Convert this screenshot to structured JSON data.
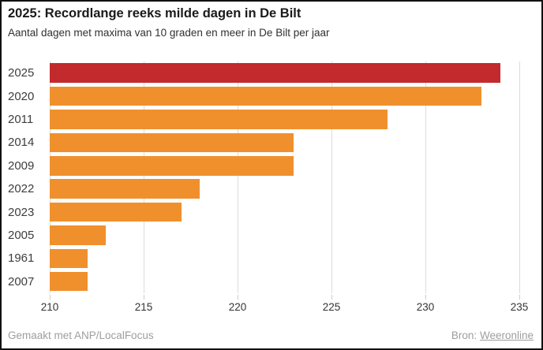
{
  "header": {
    "title": "2025: Recordlange reeks milde dagen in De Bilt",
    "subtitle": "Aantal dagen met maxima van 10 graden en meer in De Bilt per jaar"
  },
  "chart_data": {
    "type": "bar",
    "orientation": "horizontal",
    "title": "2025: Recordlange reeks milde dagen in De Bilt",
    "subtitle": "Aantal dagen met maxima van 10 graden en meer in De Bilt per jaar",
    "categories": [
      "2025",
      "2020",
      "2011",
      "2014",
      "2009",
      "2022",
      "2023",
      "2005",
      "1961",
      "2007"
    ],
    "values": [
      234,
      233,
      228,
      223,
      223,
      218,
      217,
      213,
      212,
      212
    ],
    "colors": [
      "#c32a2d",
      "#f0902d",
      "#f0902d",
      "#f0902d",
      "#f0902d",
      "#f0902d",
      "#f0902d",
      "#f0902d",
      "#f0902d",
      "#f0902d"
    ],
    "highlight_color": "#c32a2d",
    "default_color": "#f0902d",
    "xlabel": "",
    "ylabel": "",
    "xlim": [
      210,
      235
    ],
    "x_ticks": [
      210,
      215,
      220,
      225,
      230,
      235
    ],
    "grid": true,
    "gridline_color": "#dcdcdc",
    "legend": "none"
  },
  "footer": {
    "credit": "Gemaakt met ANP/LocalFocus",
    "source_label": "Bron:",
    "source_link": "Weeronline"
  }
}
